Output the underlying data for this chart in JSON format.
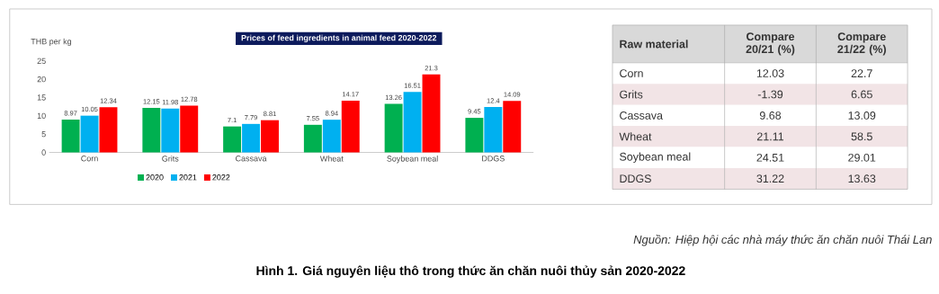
{
  "chart_data": [
    {
      "type": "bar",
      "title": "Prices of feed ingredients in animal feed 2020-2022",
      "ylabel": "THB per kg",
      "categories": [
        "Corn",
        "Grits",
        "Cassava",
        "Wheat",
        "Soybean meal",
        "DDGS"
      ],
      "series": [
        {
          "name": "2020",
          "color": "#00b050",
          "values": [
            8.97,
            12.15,
            7.1,
            7.55,
            13.26,
            9.45
          ]
        },
        {
          "name": "2021",
          "color": "#00b0f0",
          "values": [
            10.05,
            11.98,
            7.79,
            8.94,
            16.51,
            12.4
          ]
        },
        {
          "name": "2022",
          "color": "#ff0000",
          "values": [
            12.34,
            12.78,
            8.81,
            14.17,
            21.3,
            14.09
          ]
        }
      ],
      "ylim": [
        0,
        25
      ],
      "yticks": [
        0,
        5,
        10,
        15,
        20,
        25
      ],
      "data_labels": true,
      "legend": "bottom",
      "grid": false,
      "annotations": [
        "Nguồn: Hiệp hội các nhà máy thức ăn chăn nuôi Thái Lan",
        "Hình 1. Giá nguyên liệu thô trong thức ăn chăn nuôi thủy sản 2020-2022"
      ]
    },
    {
      "type": "other",
      "title": "Raw material",
      "categories": [
        "Corn",
        "Grits",
        "Cassava",
        "Wheat",
        "Soybean meal",
        "DDGS"
      ],
      "series": [
        {
          "name": "Compare 20/21 (%)",
          "colors": [
            "#ffffff",
            "#f2e4e6",
            "#ffffff",
            "#f2e4e6",
            "#ffffff",
            "#f2e4e6"
          ],
          "values": [
            12.03,
            -1.39,
            9.68,
            21.11,
            24.51,
            31.22
          ]
        },
        {
          "name": "Compare 21/22 (%)",
          "colors": [
            "#ffffff",
            "#f2e4e6",
            "#ffffff",
            "#f2e4e6",
            "#ffffff",
            "#f2e4e6"
          ],
          "values": [
            22.7,
            6.65,
            13.09,
            58.5,
            29.01,
            13.63
          ]
        }
      ],
      "data_labels": true
    }
  ]
}
